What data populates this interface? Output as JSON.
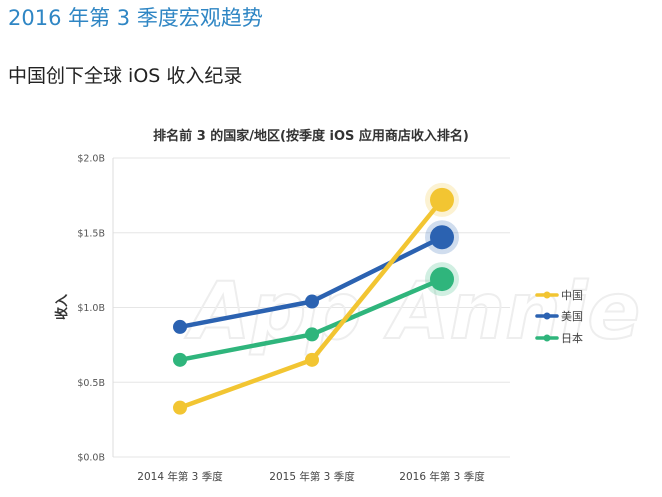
{
  "header": {
    "title": "2016 年第 3 季度宏观趋势",
    "subtitle": "中国创下全球 iOS 收入纪录"
  },
  "watermark": "App Annie",
  "chart_data": {
    "type": "line",
    "title": "排名前 3 的国家/地区(按季度 iOS 应用商店收入排名)",
    "xlabel": "",
    "ylabel": "收入",
    "categories": [
      "2014 年第 3 季度",
      "2015 年第 3 季度",
      "2016 年第 3 季度"
    ],
    "ylim": [
      0,
      2.0
    ],
    "yticks": [
      0,
      0.5,
      1.0,
      1.5,
      2.0
    ],
    "ytick_labels": [
      "$0.0B",
      "$0.5B",
      "$1.0B",
      "$1.5B",
      "$2.0B"
    ],
    "grid": true,
    "legend_position": "right",
    "series": [
      {
        "name": "中国",
        "color": "#f2c532",
        "values": [
          0.33,
          0.65,
          1.72
        ]
      },
      {
        "name": "美国",
        "color": "#2b62b1",
        "values": [
          0.87,
          1.04,
          1.47
        ]
      },
      {
        "name": "日本",
        "color": "#2fb57c",
        "values": [
          0.65,
          0.82,
          1.19
        ]
      }
    ]
  }
}
